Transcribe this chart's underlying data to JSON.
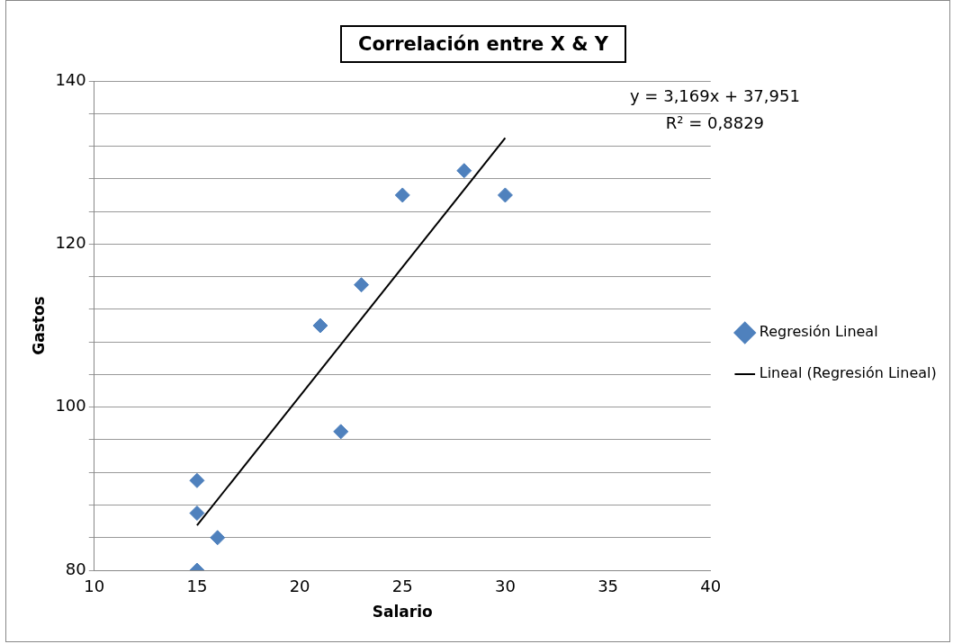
{
  "chart_data": {
    "type": "scatter",
    "title": "Correlación entre X & Y",
    "xlabel": "Salario",
    "ylabel": "Gastos",
    "annotations": [
      "y = 3,169x + 37,951",
      "R² = 0,8829"
    ],
    "series": [
      {
        "name": "Regresión Lineal",
        "type": "scatter",
        "color": "#4f81bd",
        "marker": "diamond",
        "x": [
          15,
          15,
          15,
          16,
          21,
          22,
          23,
          25,
          28,
          30
        ],
        "values": [
          80,
          87,
          91,
          84,
          110,
          97,
          115,
          126,
          129,
          126
        ]
      },
      {
        "name": "Lineal (Regresión Lineal)",
        "type": "line",
        "color": "#000000",
        "marker": "none",
        "line_style": "solid",
        "x": [
          15,
          30
        ],
        "values": [
          85.5,
          133.0
        ]
      }
    ],
    "xlim": [
      10,
      40
    ],
    "xticks": [
      10,
      15,
      20,
      25,
      30,
      35,
      40
    ],
    "ylim": [
      80,
      140
    ],
    "yticks": [
      80,
      {
        "value": 84,
        "label": null
      },
      {
        "value": 88,
        "label": null
      },
      {
        "value": 92,
        "label": null
      },
      {
        "value": 96,
        "label": null
      },
      100,
      {
        "value": 104,
        "label": null
      },
      {
        "value": 108,
        "label": null
      },
      {
        "value": 112,
        "label": null
      },
      {
        "value": 116,
        "label": null
      },
      120,
      {
        "value": 124,
        "label": null
      },
      {
        "value": 128,
        "label": null
      },
      {
        "value": 132,
        "label": null
      },
      {
        "value": 136,
        "label": null
      },
      140
    ],
    "grid": "y",
    "legend": "right"
  }
}
